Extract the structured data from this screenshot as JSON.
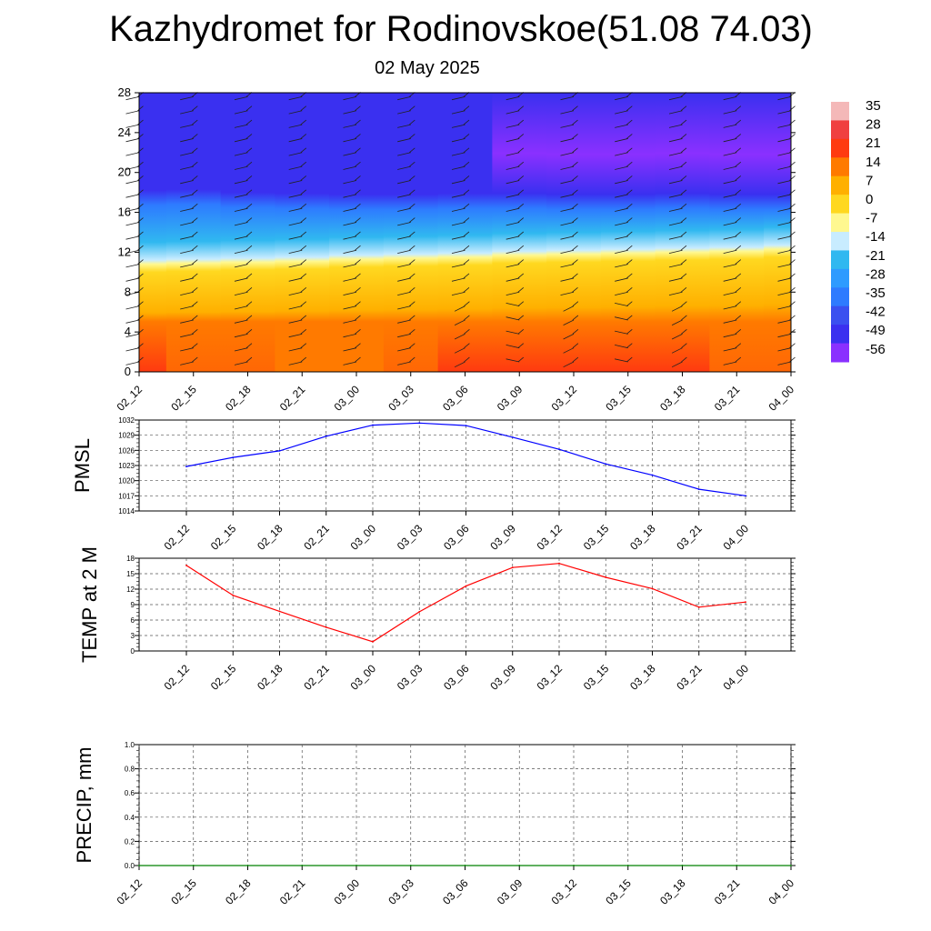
{
  "header": {
    "title": "Kazhydromet for Rodinovskoe(51.08 74.03)",
    "subtitle": "02 May 2025"
  },
  "colorbar": {
    "labels": [
      "35",
      "28",
      "21",
      "14",
      "7",
      "0",
      "-7",
      "-14",
      "-21",
      "-28",
      "-35",
      "-42",
      "-49",
      "-56"
    ]
  },
  "chart_data": [
    {
      "type": "heatmap",
      "title": "",
      "ylabel": "",
      "ylim": [
        0,
        28
      ],
      "yticks": [
        0,
        4,
        8,
        12,
        16,
        20,
        24,
        28
      ],
      "x_ticks": [
        "02_12",
        "02_15",
        "02_18",
        "02_21",
        "03_00",
        "03_03",
        "03_06",
        "03_09",
        "03_12",
        "03_15",
        "03_18",
        "03_21",
        "04_00"
      ],
      "palette": [
        "#ff3a10",
        "#ff7a00",
        "#ffb000",
        "#ffd820",
        "#fff890",
        "#c8ecff",
        "#30b8f0",
        "#2e7bff",
        "#3a30f0",
        "#8a30ff"
      ],
      "freezing_level_km": [
        10.8,
        10.9,
        11.0,
        11.1,
        11.3,
        11.4,
        11.5,
        11.7,
        11.8,
        11.9,
        12.0,
        12.1,
        12.3
      ],
      "tropopause_km": [
        18.2,
        18.3,
        18.0,
        17.9,
        17.8,
        17.8,
        17.9,
        17.9,
        17.8,
        17.8,
        17.9,
        17.8,
        17.8
      ],
      "surface_temp": [
        16.6,
        10.8,
        7.7,
        4.6,
        1.8,
        7.6,
        12.6,
        16.2,
        17.0,
        14.3,
        12.1,
        8.5,
        9.5
      ]
    },
    {
      "type": "line",
      "ylabel": "PMSL",
      "ylim": [
        1014,
        1032
      ],
      "yticks": [
        1014,
        1017,
        1020,
        1023,
        1026,
        1029,
        1032
      ],
      "categories": [
        "02_12",
        "02_15",
        "02_18",
        "02_21",
        "03_00",
        "03_03",
        "03_06",
        "03_09",
        "03_12",
        "03_15",
        "03_18",
        "03_21",
        "04_00"
      ],
      "series": [
        {
          "values": [
            1022.8,
            1024.6,
            1025.9,
            1028.8,
            1031.0,
            1031.4,
            1030.9,
            1028.6,
            1026.2,
            1023.3,
            1021.1,
            1018.3,
            1017.0
          ],
          "color": "#0000ff"
        }
      ]
    },
    {
      "type": "line",
      "ylabel": "TEMP at 2 M",
      "ylim": [
        0,
        18
      ],
      "yticks": [
        0,
        3,
        6,
        9,
        12,
        15,
        18
      ],
      "categories": [
        "02_12",
        "02_15",
        "02_18",
        "02_21",
        "03_00",
        "03_03",
        "03_06",
        "03_09",
        "03_12",
        "03_15",
        "03_18",
        "03_21",
        "04_00"
      ],
      "series": [
        {
          "values": [
            16.6,
            10.8,
            7.7,
            4.6,
            1.8,
            7.6,
            12.6,
            16.2,
            17.0,
            14.3,
            12.1,
            8.5,
            9.5
          ],
          "color": "#ff0000"
        }
      ]
    },
    {
      "type": "line",
      "ylabel": "PRECIP, mm",
      "ylim": [
        0.0,
        1.0
      ],
      "yticks": [
        "0.0",
        "0.2",
        "0.4",
        "0.6",
        "0.8",
        "1.0"
      ],
      "categories": [
        "02_12",
        "02_15",
        "02_18",
        "02_21",
        "03_00",
        "03_03",
        "03_06",
        "03_09",
        "03_12",
        "03_15",
        "03_18",
        "03_21",
        "04_00"
      ],
      "series": [
        {
          "values": [
            0,
            0,
            0,
            0,
            0,
            0,
            0,
            0,
            0,
            0,
            0,
            0,
            0
          ],
          "color": "#008000"
        }
      ]
    }
  ]
}
